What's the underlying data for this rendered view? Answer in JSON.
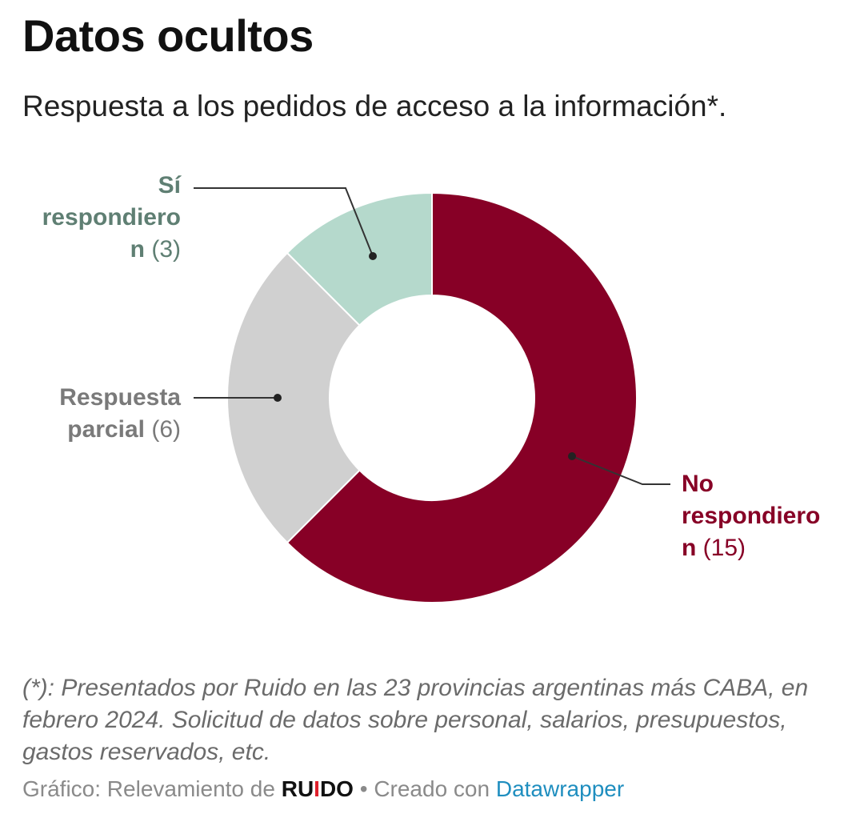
{
  "title": "Datos ocultos",
  "subtitle": "Respuesta a los pedidos de acceso a la información*.",
  "chart_data": {
    "type": "pie",
    "variant": "donut",
    "segments": [
      {
        "label": "No respondieron",
        "value": 15,
        "color": "#870026"
      },
      {
        "label": "Respuesta parcial",
        "value": 6,
        "color": "#d0d0d0"
      },
      {
        "label": "Sí respondieron",
        "value": 3,
        "color": "#b5d9cc"
      }
    ]
  },
  "labels": {
    "si": {
      "name_line1": "Sí",
      "name_line2": "respondiero",
      "name_line3": "n",
      "count": "(3)"
    },
    "parcial": {
      "name_line1": "Respuesta",
      "name_line2": "parcial",
      "count": "(6)"
    },
    "no": {
      "name_line1": "No",
      "name_line2": "respondiero",
      "name_line3": "n",
      "count": "(15)"
    }
  },
  "note": "(*): Presentados por Ruido en las 23 provincias argentinas más CABA, en febrero 2024. Solicitud de datos sobre personal, salarios, presupuestos, gastos reservados, etc.",
  "footer": {
    "prefix": "Gráfico: Relevamiento de ",
    "brand_a": "RU",
    "brand_i": "I",
    "brand_b": "DO",
    "separator": " • Creado con ",
    "tool": "Datawrapper"
  }
}
